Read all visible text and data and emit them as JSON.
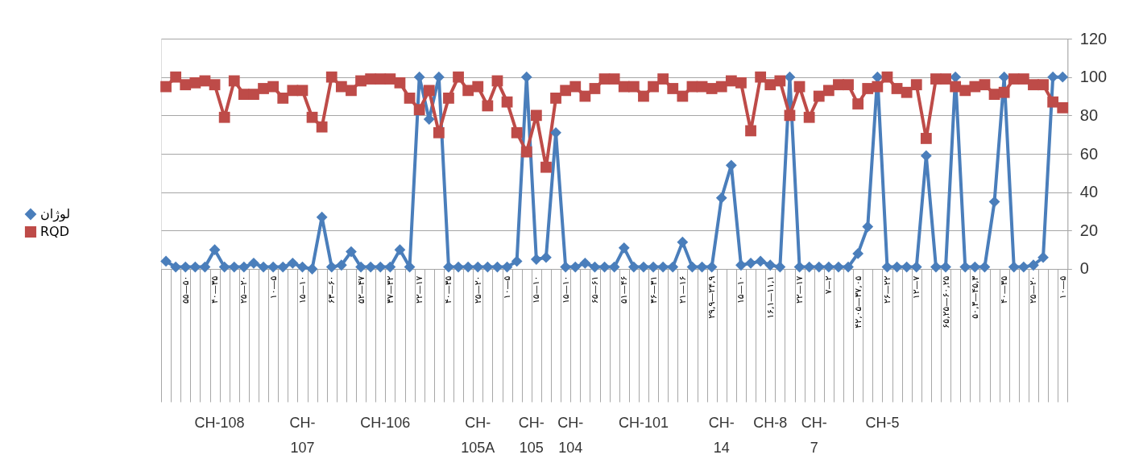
{
  "chart_data": {
    "type": "line",
    "legend": "left",
    "grid": "y",
    "ylim": [
      0,
      120
    ],
    "yticks": [
      0,
      20,
      40,
      60,
      80,
      100,
      120
    ],
    "categories": [
      null,
      null,
      "۵۵—۵۰",
      null,
      null,
      "۴۰—۳۵",
      null,
      null,
      "۲۵—۲۰",
      null,
      null,
      "۱۰—۵",
      null,
      null,
      "۱۵—۱۰",
      null,
      null,
      "۶۳—۶۰",
      null,
      null,
      "۵۲—۴۷",
      null,
      null,
      "۳۷—۳۲",
      null,
      null,
      "۲۲—۱۷",
      null,
      null,
      "۴۰—۳۵",
      null,
      null,
      "۲۵—۲۰",
      null,
      null,
      "۱۰—۵",
      null,
      null,
      "۱۵—۱۰",
      null,
      null,
      "۱۵—۱۰",
      null,
      null,
      "۶۵—۶۱",
      null,
      null,
      "۵۱—۴۶",
      null,
      null,
      "۳۶—۳۱",
      null,
      null,
      "۲۱—۱۶",
      null,
      null,
      "۲۹,۹—۲۴,۹",
      null,
      null,
      "۱۵—۱۰",
      null,
      null,
      "۱۶,۱—۱۱,۱",
      null,
      null,
      "۲۲—۱۷",
      null,
      null,
      "۷—۲",
      null,
      null,
      "۴۲,۰۵—۳۷,۰۵",
      null,
      null,
      "۲۶—۲۲",
      null,
      null,
      "۱۲—۷",
      null,
      null,
      "۶۵,۲۵—۶۰,۲۵",
      null,
      null,
      "۵۰,۳—۴۵,۳",
      null,
      null,
      "۴۰—۳۵",
      null,
      null,
      "۲۵—۲۰",
      null,
      null,
      "۱۰—۵"
    ],
    "series": [
      {
        "name": "لوژان",
        "color": "#4a7ebb",
        "marker": "diamond",
        "values": [
          4,
          1,
          1,
          1,
          1,
          10,
          1,
          1,
          1,
          3,
          1,
          1,
          1,
          3,
          1,
          0,
          27,
          1,
          2,
          9,
          1,
          1,
          1,
          1,
          10,
          1,
          100,
          78,
          100,
          1,
          1,
          1,
          1,
          1,
          1,
          1,
          4,
          100,
          5,
          6,
          71,
          1,
          1,
          3,
          1,
          1,
          1,
          11,
          1,
          1,
          1,
          1,
          1,
          14,
          1,
          1,
          1,
          37,
          54,
          2,
          3,
          4,
          2,
          1,
          100,
          1,
          1,
          1,
          1,
          1,
          1,
          8,
          22,
          100,
          1,
          1,
          1,
          1,
          59,
          1,
          1,
          100,
          1,
          1,
          1,
          35,
          100,
          1,
          1,
          2,
          6,
          100,
          100
        ]
      },
      {
        "name": "RQD",
        "color": "#be4b48",
        "marker": "square",
        "values": [
          95,
          100,
          96,
          97,
          98,
          96,
          79,
          98,
          91,
          91,
          94,
          95,
          89,
          93,
          93,
          79,
          74,
          100,
          95,
          93,
          98,
          99,
          99,
          99,
          97,
          89,
          83,
          93,
          71,
          89,
          100,
          93,
          95,
          85,
          98,
          87,
          71,
          61,
          80,
          53,
          89,
          93,
          95,
          90,
          94,
          99,
          99,
          95,
          95,
          90,
          95,
          99,
          94,
          90,
          95,
          95,
          94,
          95,
          98,
          97,
          72,
          100,
          96,
          98,
          80,
          95,
          79,
          90,
          93,
          96,
          96,
          86,
          94,
          95,
          100,
          94,
          92,
          96,
          68,
          99,
          99,
          95,
          93,
          95,
          96,
          91,
          92,
          99,
          99,
          96,
          96,
          87,
          84
        ]
      }
    ],
    "annotations": [
      "CH-108",
      "CH-107",
      "CH-106",
      "CH-105A",
      "CH-105",
      "CH-104",
      "CH-101",
      "CH-14",
      "CH-8",
      "CH-7",
      "CH-5"
    ]
  }
}
